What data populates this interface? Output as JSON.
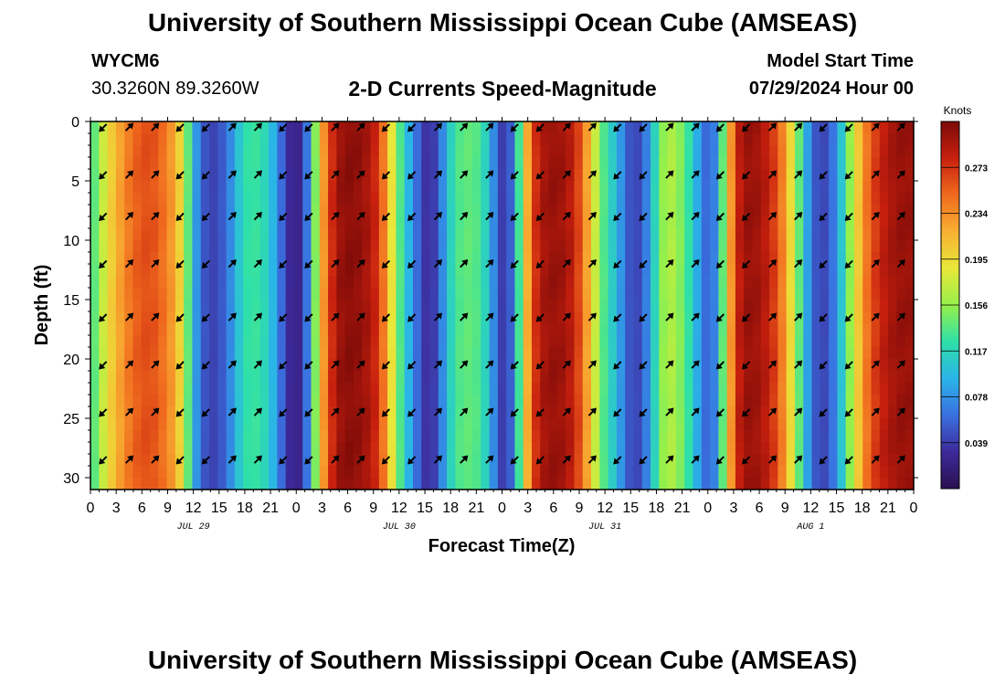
{
  "page": {
    "title": "University of Southern Mississippi Ocean Cube (AMSEAS)",
    "footer_title": "University of Southern Mississippi Ocean Cube (AMSEAS)",
    "station_id": "WYCM6",
    "station_coords": "30.3260N  89.3260W",
    "chart_title": "2-D Currents Speed-Magnitude",
    "model_start_label": "Model Start Time",
    "model_start_value": "07/29/2024 Hour 00"
  },
  "chart_data": {
    "type": "heatmap",
    "title": "2-D Currents Speed-Magnitude",
    "xlabel": "Forecast Time(Z)",
    "ylabel": "Depth (ft)",
    "colorbar_label": "Knots",
    "x_tick_labels": [
      "0",
      "3",
      "6",
      "9",
      "12",
      "15",
      "18",
      "21",
      "0",
      "3",
      "6",
      "9",
      "12",
      "15",
      "18",
      "21",
      "0",
      "3",
      "6",
      "9",
      "12",
      "15",
      "18",
      "21",
      "0",
      "3",
      "6",
      "9",
      "12",
      "15",
      "18",
      "21",
      "0"
    ],
    "date_labels": [
      {
        "hour": 12,
        "label": "JUL 29"
      },
      {
        "hour": 36,
        "label": "JUL 30"
      },
      {
        "hour": 60,
        "label": "JUL 31"
      },
      {
        "hour": 84,
        "label": "AUG 1"
      }
    ],
    "xlim": [
      0,
      96
    ],
    "ylim": [
      0,
      31
    ],
    "y_ticks": [
      0,
      5,
      10,
      15,
      20,
      25,
      30
    ],
    "colorbar_ticks": [
      "0.039",
      "0.078",
      "0.117",
      "0.156",
      "0.195",
      "0.234",
      "0.273"
    ],
    "colorbar_range": [
      0,
      0.312
    ],
    "colormap": [
      "#2a1050",
      "#3d2a9a",
      "#3a70e0",
      "#2ab4e8",
      "#2fe0a8",
      "#96f04a",
      "#e8e83a",
      "#f8b032",
      "#f06a1e",
      "#c8200e",
      "#7a0a08"
    ],
    "arrow_depths": [
      0.5,
      4.5,
      8,
      12,
      16.5,
      20.5,
      24.5,
      28.5
    ],
    "surface_profile": [
      0.12,
      0.16,
      0.19,
      0.215,
      0.235,
      0.25,
      0.26,
      0.262,
      0.255,
      0.24,
      0.22,
      0.18,
      0.1,
      0.06,
      0.04,
      0.045,
      0.06,
      0.09,
      0.12,
      0.13,
      0.125,
      0.11,
      0.08,
      0.04,
      0.02,
      0.03,
      0.1,
      0.2,
      0.26,
      0.295,
      0.305,
      0.305,
      0.3,
      0.29,
      0.27,
      0.22,
      0.16,
      0.11,
      0.08,
      0.04,
      0.03,
      0.05,
      0.1,
      0.13,
      0.14,
      0.14,
      0.13,
      0.1,
      0.05,
      0.03,
      0.08,
      0.18,
      0.26,
      0.29,
      0.3,
      0.3,
      0.295,
      0.28,
      0.25,
      0.2,
      0.15,
      0.12,
      0.1,
      0.06,
      0.04,
      0.05,
      0.09,
      0.14,
      0.17,
      0.16,
      0.14,
      0.11,
      0.07,
      0.05,
      0.09,
      0.19,
      0.27,
      0.3,
      0.3,
      0.295,
      0.28,
      0.26,
      0.22,
      0.17,
      0.11,
      0.06,
      0.04,
      0.05,
      0.08,
      0.13,
      0.18,
      0.23,
      0.26,
      0.28,
      0.29,
      0.3,
      0.3
    ]
  }
}
